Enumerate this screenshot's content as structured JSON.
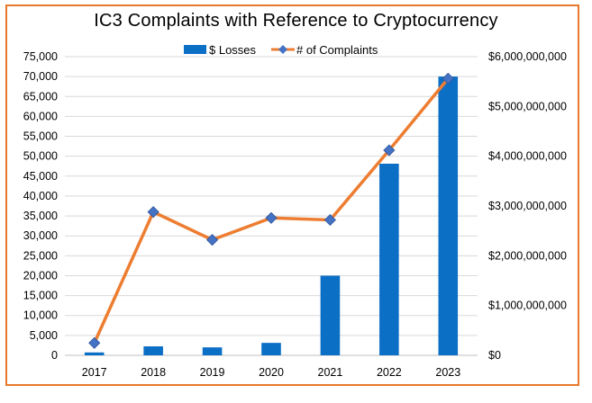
{
  "chart_data": {
    "type": "bar",
    "title": "IC3 Complaints with Reference to Cryptocurrency",
    "categories": [
      "2017",
      "2018",
      "2019",
      "2020",
      "2021",
      "2022",
      "2023"
    ],
    "series": [
      {
        "name": "$ Losses",
        "type": "bar",
        "axis": "right",
        "color": "#0B6FC6",
        "values": [
          58000000,
          180000000,
          160000000,
          250000000,
          1600000000,
          3850000000,
          5600000000
        ]
      },
      {
        "name": "# of Complaints",
        "type": "line",
        "axis": "left",
        "color": "#ED7D31",
        "marker_color": "#4472C4",
        "values": [
          3100,
          36000,
          29000,
          34500,
          34000,
          51500,
          69500
        ]
      }
    ],
    "y_left": {
      "ylim": [
        0,
        75000
      ],
      "ticks": [
        0,
        5000,
        10000,
        15000,
        20000,
        25000,
        30000,
        35000,
        40000,
        45000,
        50000,
        55000,
        60000,
        65000,
        70000,
        75000
      ],
      "tick_labels": [
        "0",
        "5,000",
        "10,000",
        "15,000",
        "20,000",
        "25,000",
        "30,000",
        "35,000",
        "40,000",
        "45,000",
        "50,000",
        "55,000",
        "60,000",
        "65,000",
        "70,000",
        "75,000"
      ]
    },
    "y_right": {
      "ylim": [
        0,
        6000000000
      ],
      "ticks": [
        0,
        1000000000,
        2000000000,
        3000000000,
        4000000000,
        5000000000,
        6000000000
      ],
      "tick_labels": [
        "$0",
        "$1,000,000,000",
        "$2,000,000,000",
        "$3,000,000,000",
        "$4,000,000,000",
        "$5,000,000,000",
        "$6,000,000,000"
      ]
    },
    "grid": true,
    "legend": "top-center",
    "frame_color": "#E8782A"
  }
}
